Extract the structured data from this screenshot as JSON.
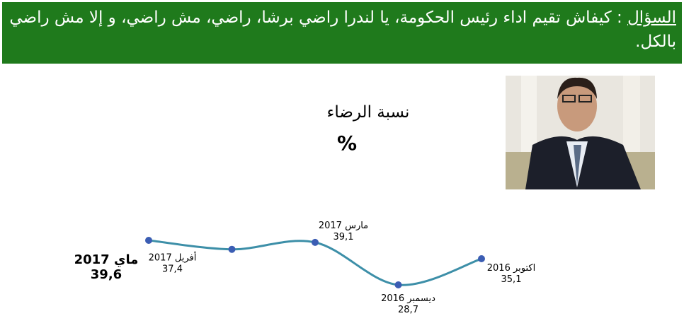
{
  "header": {
    "label": "السؤال",
    "question": ": كيفاش تقيم اداء رئيس الحكومة، يا لندرا راضي برشا، راضي، مش راضي، و إلا مش راضي بالكل."
  },
  "chart_data": {
    "type": "line",
    "title": "نسبة الرضاء",
    "subtitle": "%",
    "categories": [
      "اكتوبر 2016",
      "ديسمبر 2016",
      "مارس 2017",
      "أفريل 2017",
      "ماي 2017"
    ],
    "values": [
      35.1,
      28.7,
      39.1,
      37.4,
      39.6
    ],
    "value_labels": [
      "35,1",
      "28,7",
      "39,1",
      "37,4",
      "39,6"
    ],
    "color": "#3d8fa8",
    "marker_color": "#3b5db3"
  }
}
